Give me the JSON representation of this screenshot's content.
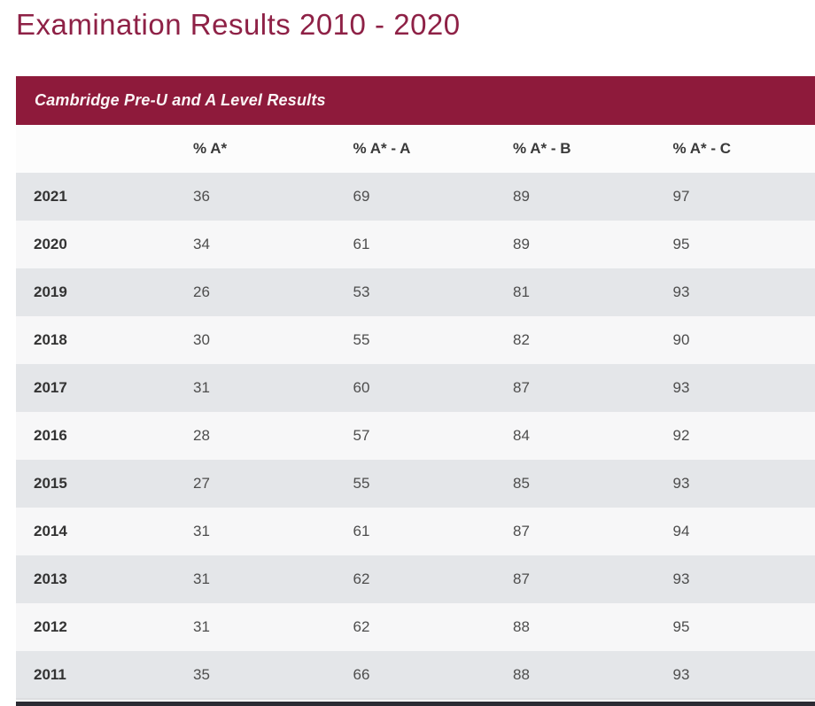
{
  "page": {
    "title": "Examination Results 2010 - 2020"
  },
  "table": {
    "caption": "Cambridge Pre-U and A Level Results",
    "columns": [
      "",
      "% A*",
      "% A* - A",
      "% A* - B",
      "% A* - C"
    ],
    "rows": [
      {
        "year": "2021",
        "values": [
          "36",
          "69",
          "89",
          "97"
        ]
      },
      {
        "year": "2020",
        "values": [
          "34",
          "61",
          "89",
          "95"
        ]
      },
      {
        "year": "2019",
        "values": [
          "26",
          "53",
          "81",
          "93"
        ]
      },
      {
        "year": "2018",
        "values": [
          "30",
          "55",
          "82",
          "90"
        ]
      },
      {
        "year": "2017",
        "values": [
          "31",
          "60",
          "87",
          "93"
        ]
      },
      {
        "year": "2016",
        "values": [
          "28",
          "57",
          "84",
          "92"
        ]
      },
      {
        "year": "2015",
        "values": [
          "27",
          "55",
          "85",
          "93"
        ]
      },
      {
        "year": "2014",
        "values": [
          "31",
          "61",
          "87",
          "94"
        ]
      },
      {
        "year": "2013",
        "values": [
          "31",
          "62",
          "87",
          "93"
        ]
      },
      {
        "year": "2012",
        "values": [
          "31",
          "62",
          "88",
          "95"
        ]
      },
      {
        "year": "2011",
        "values": [
          "35",
          "66",
          "88",
          "93"
        ]
      }
    ]
  },
  "colors": {
    "accent_maroon": "#8e1a3b",
    "title_maroon": "#8e2146",
    "row_shaded": "#e4e6e9",
    "row_light": "#f7f7f8",
    "header_row_bg": "#fcfcfc",
    "heading_text": "#3a3a3a",
    "value_text": "#4d4d4d",
    "bottom_rule": "#2b2b33"
  }
}
